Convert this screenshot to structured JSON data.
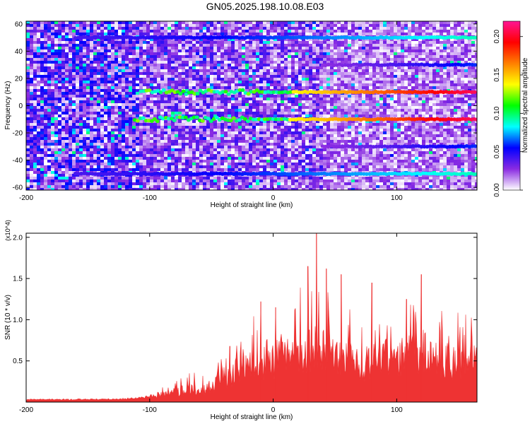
{
  "title": "GN05.2025.198.10.08.E03",
  "chart_data": [
    {
      "type": "heatmap",
      "xlabel": "Height of straight line (km)",
      "ylabel": "Frequency (Hz)",
      "xlim": [
        -200,
        165
      ],
      "ylim": [
        -62,
        62
      ],
      "xticks": [
        -200,
        -100,
        0,
        100
      ],
      "yticks": [
        60,
        40,
        20,
        0,
        -20,
        -40,
        -60
      ],
      "colorbar": {
        "label": "Normalized spectral amplitude",
        "range": [
          0.0,
          0.22
        ],
        "ticks": [
          "0.00",
          "0.05",
          "0.10",
          "0.15",
          "0.20"
        ],
        "colors": [
          "#ffffff",
          "#8a2be2",
          "#0000ff",
          "#00ffff",
          "#00ff00",
          "#ffff00",
          "#ff7f00",
          "#ff0000",
          "#ff1493"
        ]
      },
      "bands": [
        {
          "freq_hz": 10,
          "x_start_km": -107,
          "x_end_km": 165,
          "peak_amplitude": 0.21
        },
        {
          "freq_hz": -10,
          "x_start_km": -112,
          "x_end_km": 165,
          "peak_amplitude": 0.21
        },
        {
          "freq_hz": 50,
          "x_start_km": -160,
          "x_end_km": 165,
          "peak_amplitude": 0.09
        },
        {
          "freq_hz": -50,
          "x_start_km": -160,
          "x_end_km": 165,
          "peak_amplitude": 0.09
        },
        {
          "freq_hz": 30,
          "x_start_km": 40,
          "x_end_km": 165,
          "peak_amplitude": 0.06
        },
        {
          "freq_hz": -30,
          "x_start_km": 40,
          "x_end_km": 165,
          "peak_amplitude": 0.06
        }
      ]
    },
    {
      "type": "area",
      "xlabel": "Height of straight line (km)",
      "ylabel": "SNR (10 * v/v)",
      "ymultiplier": "(x10^4)",
      "xlim": [
        -200,
        165
      ],
      "ylim": [
        0,
        2.05
      ],
      "xticks": [
        -200,
        -100,
        0,
        100
      ],
      "yticks": [
        0.5,
        1.0,
        1.5,
        2.0
      ],
      "ytick_labels": [
        "0.5",
        "1.0",
        "1.5",
        "2.0"
      ],
      "color": "#ee3333",
      "series": [
        {
          "x": [
            -200,
            -180,
            -160,
            -140,
            -120,
            -105,
            -95,
            -85,
            -75,
            -65,
            -55,
            -45,
            -35,
            -25,
            -15,
            -5,
            5,
            15,
            25,
            35,
            45,
            55,
            65,
            75,
            85,
            95,
            105,
            115,
            125,
            135,
            145,
            155,
            165
          ],
          "values": [
            0.04,
            0.04,
            0.04,
            0.04,
            0.05,
            0.07,
            0.12,
            0.15,
            0.2,
            0.25,
            0.22,
            0.35,
            0.45,
            0.65,
            0.7,
            0.75,
            0.78,
            0.85,
            1.0,
            0.95,
            0.9,
            0.75,
            0.8,
            0.7,
            0.82,
            0.75,
            0.8,
            0.85,
            0.9,
            0.75,
            0.72,
            0.78,
            0.75
          ]
        }
      ],
      "peaks": [
        {
          "x": -35,
          "y": 0.68
        },
        {
          "x": -10,
          "y": 1.22
        },
        {
          "x": 2,
          "y": 1.15
        },
        {
          "x": 28,
          "y": 1.65
        },
        {
          "x": 35,
          "y": 2.05
        },
        {
          "x": 43,
          "y": 1.62
        },
        {
          "x": 55,
          "y": 1.55
        },
        {
          "x": 80,
          "y": 1.45
        },
        {
          "x": 108,
          "y": 1.25
        },
        {
          "x": 120,
          "y": 1.55
        }
      ]
    }
  ]
}
